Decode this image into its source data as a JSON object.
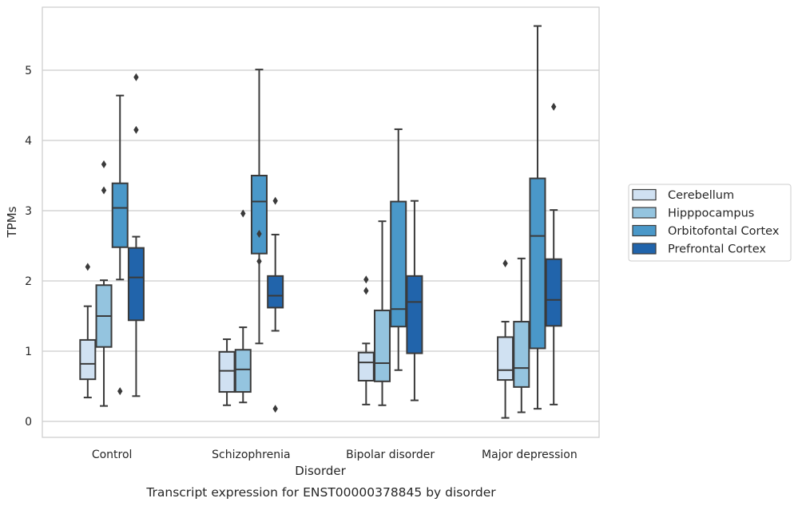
{
  "chart_data": {
    "type": "box",
    "title": "",
    "caption": "Transcript expression for ENST00000378845 by disorder",
    "xlabel": "Disorder",
    "ylabel": "TPMs",
    "ylim": [
      -0.22,
      5.9
    ],
    "yticks": [
      "0",
      "1",
      "2",
      "3",
      "4",
      "5"
    ],
    "grid": "horizontal",
    "legend_position": "right",
    "categories": [
      "Control",
      "Schizophrenia",
      "Bipolar disorder",
      "Major depression"
    ],
    "series": [
      {
        "name": "Cerebellum",
        "color": "#d0e1f2",
        "boxes": [
          {
            "whislo": 0.34,
            "q1": 0.6,
            "med": 0.82,
            "q3": 1.16,
            "whishi": 1.64,
            "fliers": [
              2.2
            ]
          },
          {
            "whislo": 0.23,
            "q1": 0.42,
            "med": 0.72,
            "q3": 0.99,
            "whishi": 1.17,
            "fliers": []
          },
          {
            "whislo": 0.24,
            "q1": 0.58,
            "med": 0.84,
            "q3": 0.98,
            "whishi": 1.11,
            "fliers": [
              1.86,
              2.02
            ]
          },
          {
            "whislo": 0.05,
            "q1": 0.59,
            "med": 0.73,
            "q3": 1.2,
            "whishi": 1.42,
            "fliers": [
              2.25
            ]
          }
        ]
      },
      {
        "name": "Hipppocampus",
        "color": "#94c4df",
        "boxes": [
          {
            "whislo": 0.22,
            "q1": 1.06,
            "med": 1.5,
            "q3": 1.94,
            "whishi": 2.01,
            "fliers": [
              3.29,
              3.66
            ]
          },
          {
            "whislo": 0.27,
            "q1": 0.42,
            "med": 0.74,
            "q3": 1.02,
            "whishi": 1.34,
            "fliers": [
              2.96
            ]
          },
          {
            "whislo": 0.23,
            "q1": 0.57,
            "med": 0.83,
            "q3": 1.58,
            "whishi": 2.85,
            "fliers": []
          },
          {
            "whislo": 0.13,
            "q1": 0.49,
            "med": 0.76,
            "q3": 1.42,
            "whishi": 2.32,
            "fliers": []
          }
        ]
      },
      {
        "name": "Orbitofontal Cortex",
        "color": "#4a98c9",
        "boxes": [
          {
            "whislo": 2.02,
            "q1": 2.48,
            "med": 3.04,
            "q3": 3.39,
            "whishi": 4.64,
            "fliers": [
              0.43
            ]
          },
          {
            "whislo": 1.11,
            "q1": 2.39,
            "med": 3.13,
            "q3": 3.5,
            "whishi": 5.01,
            "fliers": [
              2.28,
              2.67
            ]
          },
          {
            "whislo": 0.73,
            "q1": 1.35,
            "med": 1.6,
            "q3": 3.13,
            "whishi": 4.16,
            "fliers": []
          },
          {
            "whislo": 0.18,
            "q1": 1.04,
            "med": 2.64,
            "q3": 3.46,
            "whishi": 5.63,
            "fliers": []
          }
        ]
      },
      {
        "name": "Prefrontal Cortex",
        "color": "#2164ab",
        "boxes": [
          {
            "whislo": 0.36,
            "q1": 1.44,
            "med": 2.05,
            "q3": 2.47,
            "whishi": 2.63,
            "fliers": [
              4.15,
              4.9
            ]
          },
          {
            "whislo": 1.29,
            "q1": 1.62,
            "med": 1.79,
            "q3": 2.07,
            "whishi": 2.66,
            "fliers": [
              0.18,
              3.14
            ]
          },
          {
            "whislo": 0.3,
            "q1": 0.97,
            "med": 1.7,
            "q3": 2.07,
            "whishi": 3.14,
            "fliers": []
          },
          {
            "whislo": 0.24,
            "q1": 1.36,
            "med": 1.73,
            "q3": 2.31,
            "whishi": 3.01,
            "fliers": [
              4.48
            ]
          }
        ]
      }
    ]
  }
}
